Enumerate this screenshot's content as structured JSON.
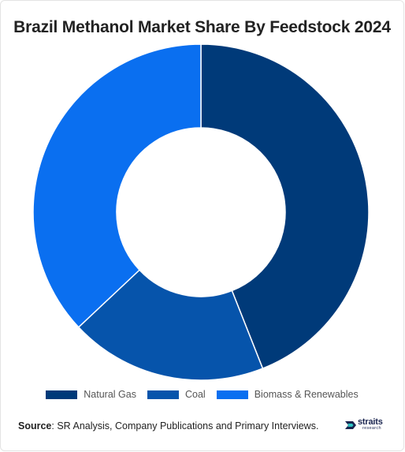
{
  "chart_data": {
    "type": "pie",
    "donut": true,
    "title": "Brazil Methanol Market Share By Feedstock 2024",
    "series": [
      {
        "name": "Natural Gas",
        "value": 44,
        "color": "#003a79"
      },
      {
        "name": "Coal",
        "value": 19,
        "color": "#0654ab"
      },
      {
        "name": "Biomass & Renewables",
        "value": 37,
        "color": "#0a6ff0"
      }
    ],
    "legend_position": "bottom"
  },
  "source": {
    "label": "Source",
    "text": ": SR Analysis, Company Publications and Primary Interviews."
  },
  "logo": {
    "name": "straits",
    "tagline": "research"
  }
}
